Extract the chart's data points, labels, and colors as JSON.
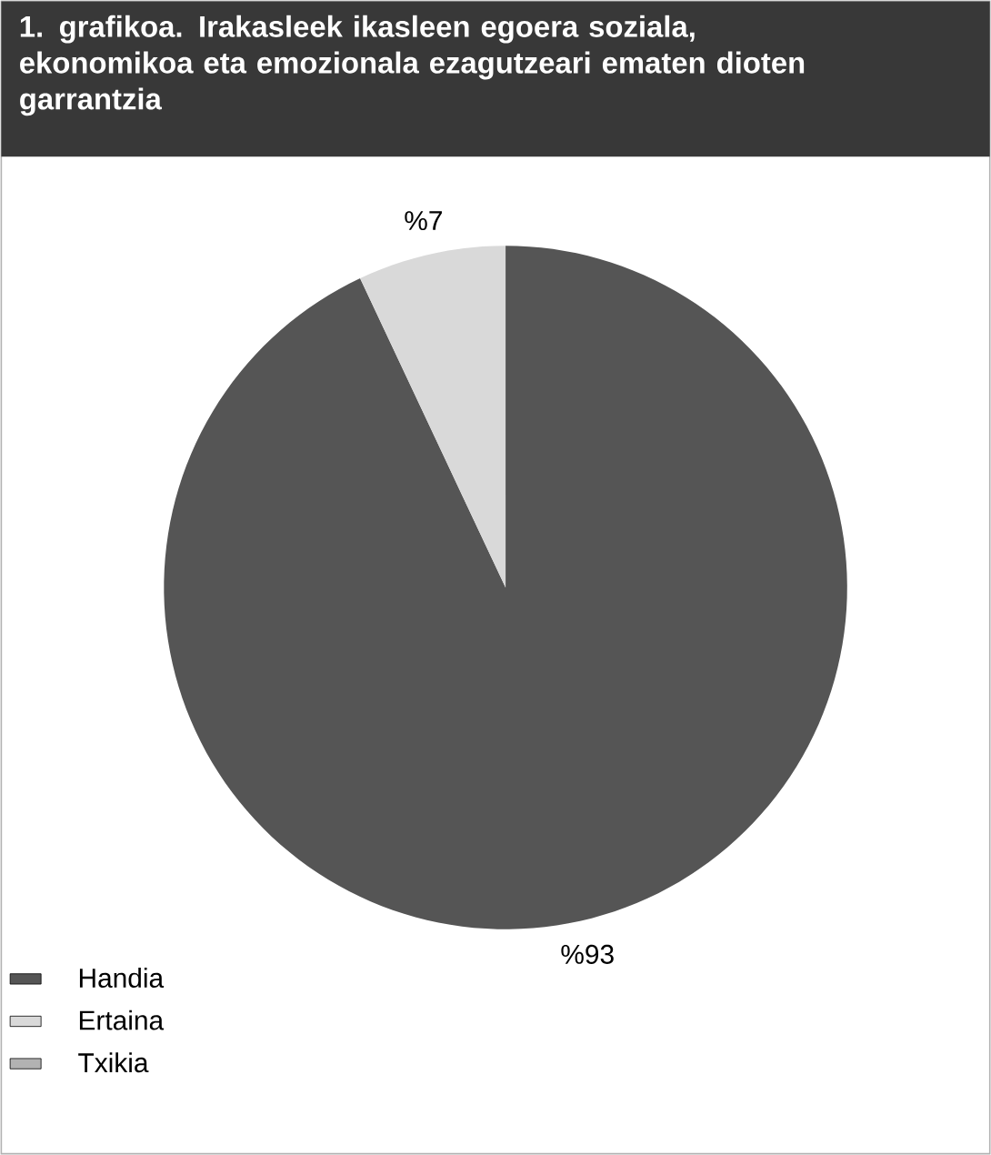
{
  "chart_data": {
    "type": "pie",
    "title": "1. grafikoa. Irakasleek ikasleen egoera soziala, ekonomikoa eta emozionala ezagutzeari ematen dioten garrantzia",
    "categories": [
      "Handia",
      "Ertaina",
      "Txikia"
    ],
    "values": [
      93,
      7,
      0
    ],
    "value_labels": [
      "%93",
      "%7",
      null
    ],
    "colors": [
      "#555555",
      "#d9d9d9",
      "#b2b2b2"
    ],
    "legend": "bottom left"
  }
}
